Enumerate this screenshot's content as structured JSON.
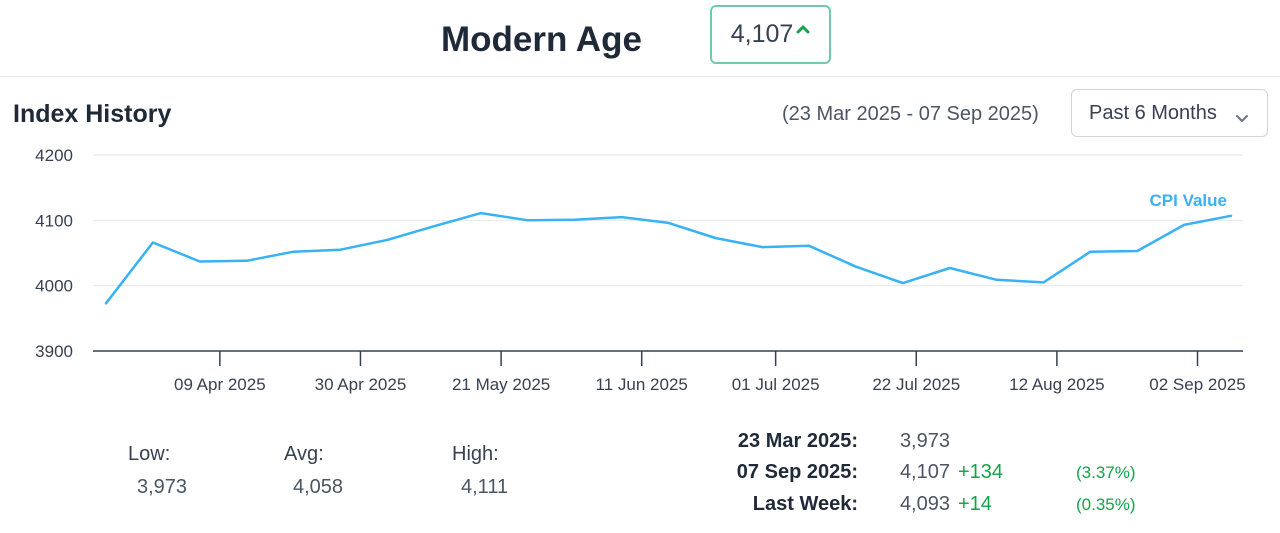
{
  "header": {
    "title": "Modern Age",
    "badge_value": "4,107",
    "accent": "#16a34a"
  },
  "section": {
    "title": "Index History",
    "range": "(23 Mar 2025 - 07 Sep 2025)",
    "period_select": "Past 6 Months"
  },
  "chart_data": {
    "type": "line",
    "series": [
      {
        "name": "CPI Value",
        "color": "#38b2f5",
        "points": [
          [
            "2025-03-23",
            3973
          ],
          [
            "2025-03-30",
            4066
          ],
          [
            "2025-04-06",
            4037
          ],
          [
            "2025-04-13",
            4038
          ],
          [
            "2025-04-20",
            4052
          ],
          [
            "2025-04-27",
            4055
          ],
          [
            "2025-05-04",
            4070
          ],
          [
            "2025-05-11",
            4091
          ],
          [
            "2025-05-18",
            4111
          ],
          [
            "2025-05-25",
            4100
          ],
          [
            "2025-06-01",
            4101
          ],
          [
            "2025-06-08",
            4105
          ],
          [
            "2025-06-15",
            4096
          ],
          [
            "2025-06-22",
            4073
          ],
          [
            "2025-06-29",
            4059
          ],
          [
            "2025-07-06",
            4061
          ],
          [
            "2025-07-13",
            4029
          ],
          [
            "2025-07-20",
            4004
          ],
          [
            "2025-07-27",
            4027
          ],
          [
            "2025-08-03",
            4009
          ],
          [
            "2025-08-10",
            4005
          ],
          [
            "2025-08-17",
            4052
          ],
          [
            "2025-08-24",
            4053
          ],
          [
            "2025-08-31",
            4093
          ],
          [
            "2025-09-07",
            4107
          ]
        ]
      }
    ],
    "y_ticks": [
      3900,
      4000,
      4100,
      4200
    ],
    "ylim": [
      3900,
      4200
    ],
    "x_ticks": [
      [
        "2025-04-09",
        "09 Apr 2025"
      ],
      [
        "2025-04-30",
        "30 Apr 2025"
      ],
      [
        "2025-05-21",
        "21 May 2025"
      ],
      [
        "2025-06-11",
        "11 Jun 2025"
      ],
      [
        "2025-07-01",
        "01 Jul 2025"
      ],
      [
        "2025-07-22",
        "22 Jul 2025"
      ],
      [
        "2025-08-12",
        "12 Aug 2025"
      ],
      [
        "2025-09-02",
        "02 Sep 2025"
      ]
    ],
    "xlim": [
      "2025-03-23",
      "2025-09-07"
    ],
    "grid": true
  },
  "stats": {
    "low_label": "Low:",
    "low": "3,973",
    "avg_label": "Avg:",
    "avg": "4,058",
    "high_label": "High:",
    "high": "4,111"
  },
  "changes": [
    {
      "label": "23 Mar 2025:",
      "value": "3,973",
      "change": "",
      "pct": ""
    },
    {
      "label": "07 Sep 2025:",
      "value": "4,107",
      "change": "+134",
      "pct": "(3.37%)"
    },
    {
      "label": "Last Week:",
      "value": "4,093",
      "change": "+14",
      "pct": "(0.35%)"
    }
  ]
}
